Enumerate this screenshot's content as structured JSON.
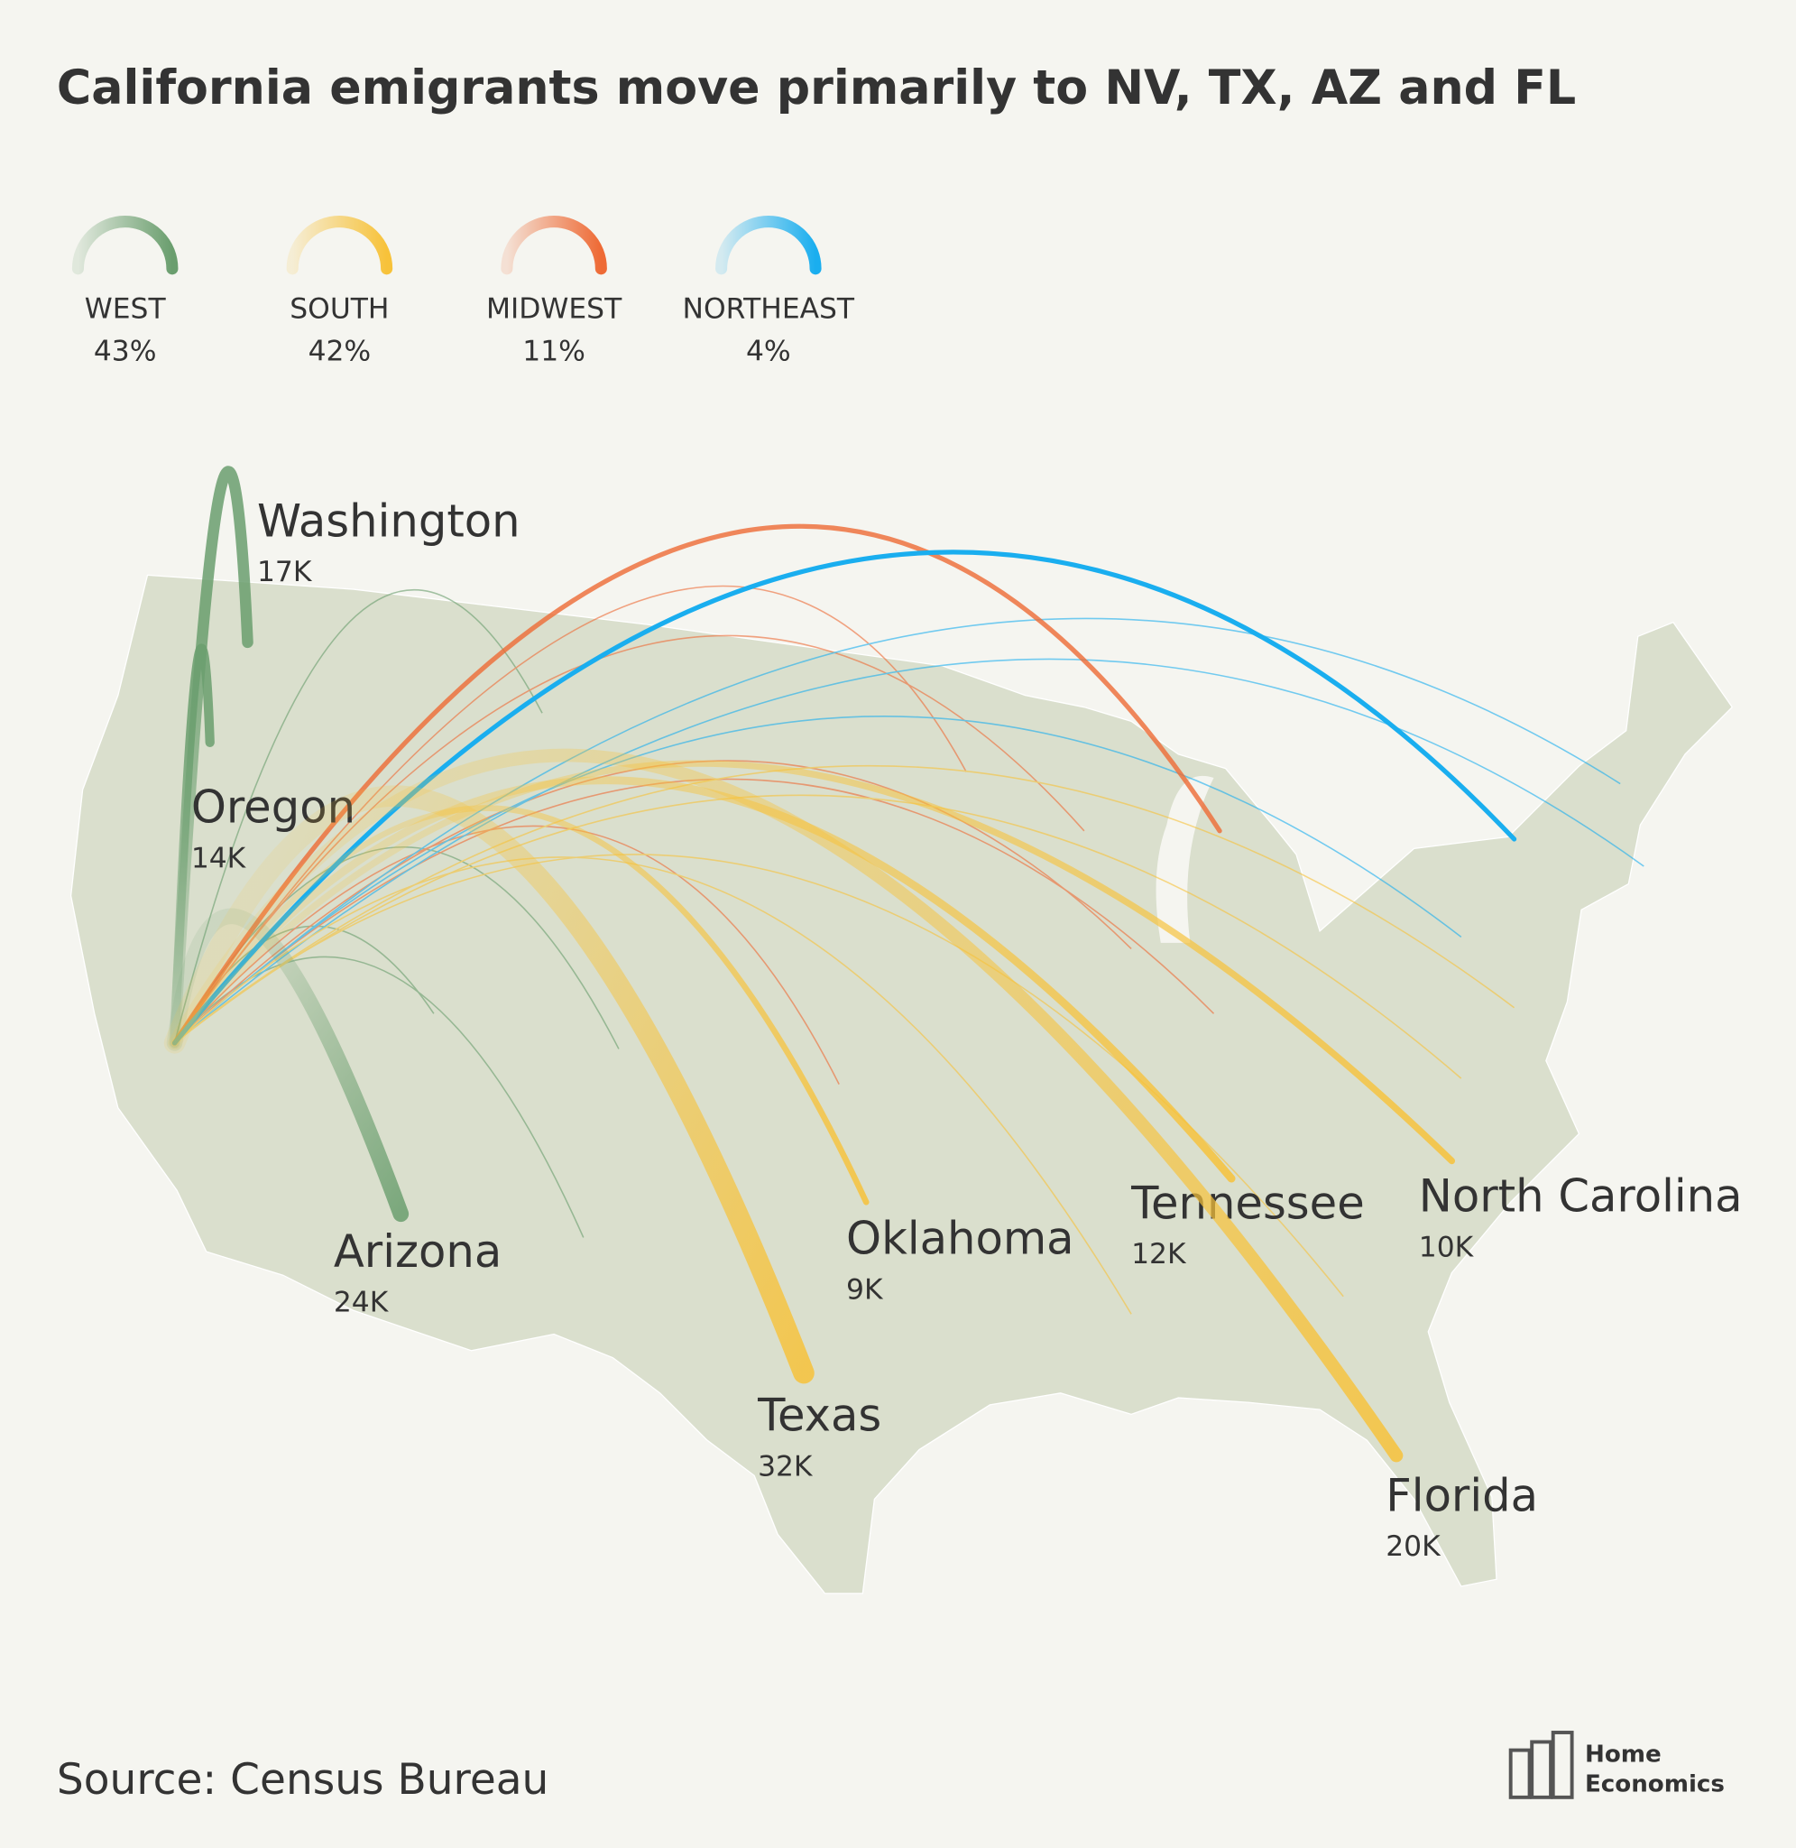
{
  "title": "California emigrants move primarily to NV, TX, AZ and FL",
  "legend": [
    {
      "name": "WEST",
      "label": "43%",
      "color": "#6a9e6e"
    },
    {
      "name": "SOUTH",
      "label": "42%",
      "color": "#f7c23a"
    },
    {
      "name": "MIDWEST",
      "label": "11%",
      "color": "#ee6a35"
    },
    {
      "name": "NORTHEAST",
      "label": "4%",
      "color": "#1aaeef"
    }
  ],
  "destinations": [
    {
      "name": "Washington",
      "value": 17000,
      "label": "17K",
      "region": 0
    },
    {
      "name": "Oregon",
      "value": 14000,
      "label": "14K",
      "region": 0
    },
    {
      "name": "Arizona",
      "value": 24000,
      "label": "24K",
      "region": 0
    },
    {
      "name": "Texas",
      "value": 32000,
      "label": "32K",
      "region": 1
    },
    {
      "name": "Oklahoma",
      "value": 9000,
      "label": "9K",
      "region": 1
    },
    {
      "name": "Tennessee",
      "value": 12000,
      "label": "12K",
      "region": 1
    },
    {
      "name": "North Carolina",
      "value": 10000,
      "label": "10K",
      "region": 1
    },
    {
      "name": "Florida",
      "value": 20000,
      "label": "20K",
      "region": 1
    }
  ],
  "source": "Source: Census Bureau",
  "logo": [
    "Home",
    "Economics"
  ]
}
